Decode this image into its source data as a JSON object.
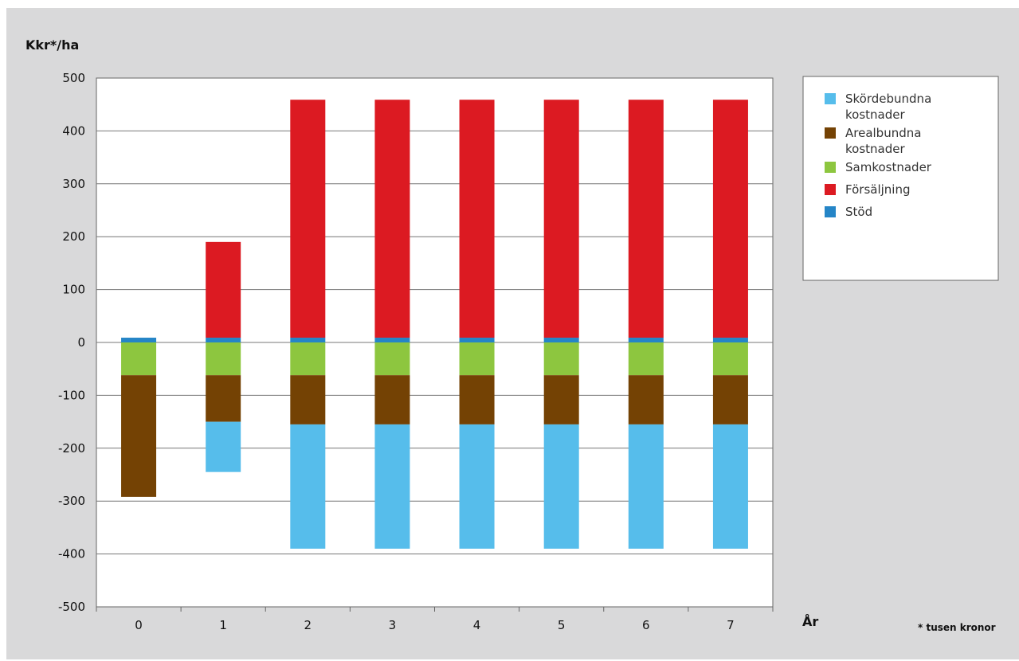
{
  "chart_data": {
    "type": "bar",
    "stacked": true,
    "ylabel": "Kkr*/ha",
    "xlabel": "År",
    "footnote": "* tusen kronor",
    "categories": [
      "0",
      "1",
      "2",
      "3",
      "4",
      "5",
      "6",
      "7"
    ],
    "ylim": [
      -500,
      500
    ],
    "yticks": [
      500,
      400,
      300,
      200,
      100,
      0,
      -100,
      -200,
      -300,
      -400,
      -500
    ],
    "grid": true,
    "legend_position": "right",
    "series": [
      {
        "name": "Skördebundna kostnader",
        "color": "#56bdeb",
        "values": [
          0,
          -95,
          -235,
          -235,
          -235,
          -235,
          -235,
          -235
        ]
      },
      {
        "name": "Arealbundna kostnader",
        "color": "#744204",
        "values": [
          -230,
          -88,
          -93,
          -93,
          -93,
          -93,
          -93,
          -93
        ]
      },
      {
        "name": "Samkostnader",
        "color": "#8dc63f",
        "values": [
          -62,
          -62,
          -62,
          -62,
          -62,
          -62,
          -62,
          -62
        ]
      },
      {
        "name": "Försäljning",
        "color": "#dc1a22",
        "values": [
          0,
          181,
          450,
          450,
          450,
          450,
          450,
          450
        ]
      },
      {
        "name": "Stöd",
        "color": "#2585c7",
        "values": [
          9,
          9,
          9,
          9,
          9,
          9,
          9,
          9
        ]
      }
    ],
    "legend_lines": [
      [
        "Skördebundna",
        "kostnader"
      ],
      [
        "Arealbundna",
        "kostnader"
      ],
      [
        "Samkostnader"
      ],
      [
        "Försäljning"
      ],
      [
        "Stöd"
      ]
    ]
  }
}
